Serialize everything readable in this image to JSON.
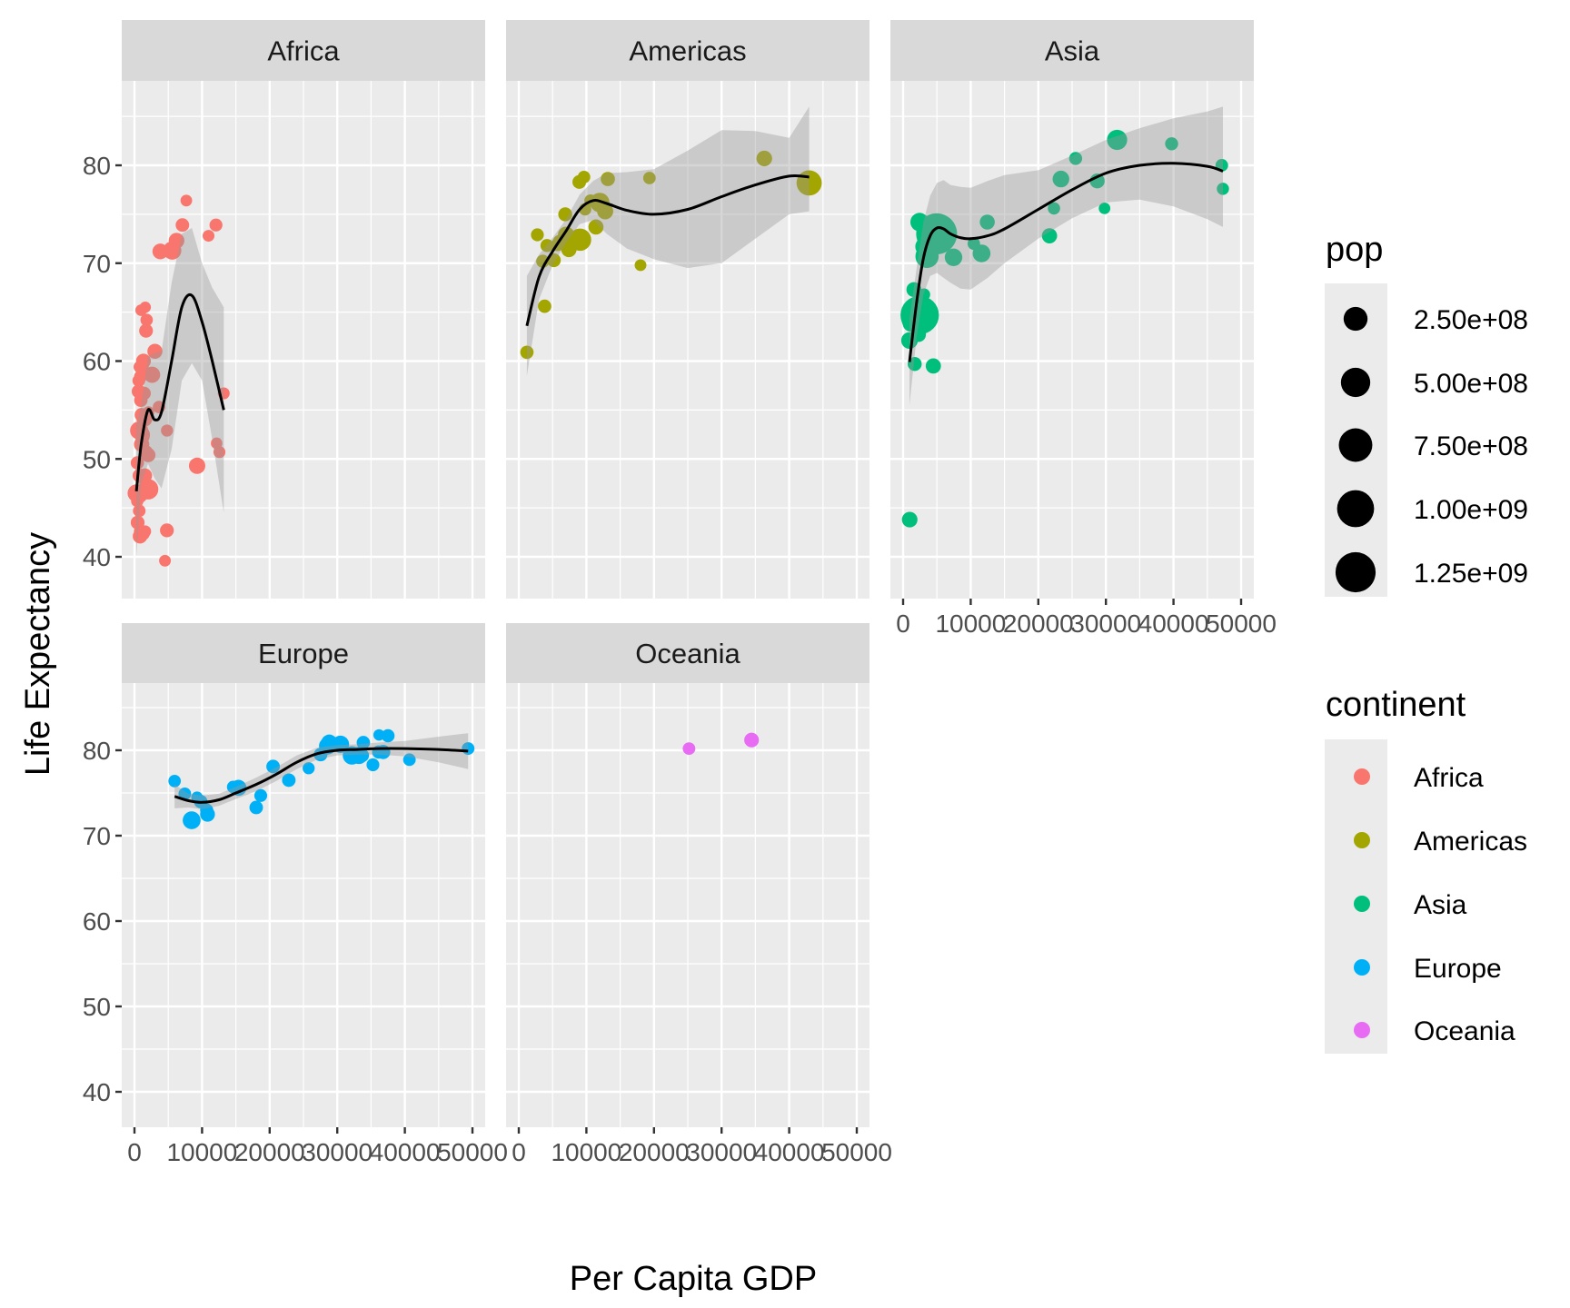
{
  "chart_data": {
    "type": "scatter",
    "subtype": "faceted scatter with loess smoothing and confidence band",
    "title": "",
    "xlabel": "Per Capita GDP",
    "ylabel": "Life Expectancy",
    "xlim": [
      0,
      50000
    ],
    "ylim": [
      40,
      80
    ],
    "x_ticks": [
      0,
      10000,
      20000,
      30000,
      40000,
      50000
    ],
    "x_tick_labels": [
      "0",
      "10000",
      "20000",
      "30000",
      "40000",
      "50000"
    ],
    "y_ticks": [
      40,
      50,
      60,
      70,
      80
    ],
    "y_tick_labels": [
      "40",
      "50",
      "60",
      "70",
      "80"
    ],
    "grid": true,
    "facet_by": "continent",
    "facets": [
      "Africa",
      "Americas",
      "Asia",
      "Europe",
      "Oceania"
    ],
    "colors": {
      "Africa": "#F8766D",
      "Americas": "#A3A500",
      "Asia": "#00BF7D",
      "Europe": "#00B0F6",
      "Oceania": "#E76BF3"
    },
    "size_legend": {
      "title": "pop",
      "labels": [
        "2.50e+08",
        "5.00e+08",
        "7.50e+08",
        "1.00e+09",
        "1.25e+09"
      ],
      "values": [
        250000000,
        500000000,
        750000000,
        1000000000,
        1250000000
      ]
    },
    "color_legend": {
      "title": "continent",
      "labels": [
        "Africa",
        "Americas",
        "Asia",
        "Europe",
        "Oceania"
      ]
    },
    "legend_placement": "right",
    "series": [
      {
        "name": "Africa",
        "points": [
          [
            6223,
            72.3,
            33333216
          ],
          [
            4797,
            42.7,
            12420476
          ],
          [
            1441,
            56.7,
            8078314
          ],
          [
            12570,
            50.7,
            1639131
          ],
          [
            1217,
            52.3,
            14326203
          ],
          [
            430,
            49.6,
            8390505
          ],
          [
            2042,
            50.4,
            17696293
          ],
          [
            706,
            44.7,
            4369038
          ],
          [
            1704,
            50.7,
            10238807
          ],
          [
            986,
            65.2,
            710960
          ],
          [
            278,
            46.5,
            64606759
          ],
          [
            3633,
            55.3,
            3800610
          ],
          [
            1545,
            48.3,
            18013409
          ],
          [
            2082,
            54.8,
            496374
          ],
          [
            5581,
            71.3,
            80264543
          ],
          [
            12154,
            51.6,
            551201
          ],
          [
            641,
            58.0,
            4906585
          ],
          [
            691,
            52.9,
            76511887
          ],
          [
            13206,
            56.7,
            1454867
          ],
          [
            753,
            59.4,
            1688359
          ],
          [
            1328,
            60.0,
            22873338
          ],
          [
            943,
            56.0,
            9947814
          ],
          [
            580,
            46.4,
            1472041
          ],
          [
            1463,
            54.1,
            35610177
          ],
          [
            1569,
            42.6,
            2012649
          ],
          [
            415,
            45.7,
            3193942
          ],
          [
            12057,
            73.9,
            6036914
          ],
          [
            1045,
            59.4,
            19167654
          ],
          [
            759,
            48.3,
            13327079
          ],
          [
            1042,
            54.5,
            12031795
          ],
          [
            1803,
            64.2,
            3270065
          ],
          [
            10957,
            72.8,
            1250882
          ],
          [
            3820,
            71.2,
            33757175
          ],
          [
            824,
            42.1,
            19951656
          ],
          [
            4811,
            52.9,
            2055080
          ],
          [
            620,
            56.9,
            12894865
          ],
          [
            2014,
            46.9,
            135031164
          ],
          [
            7670,
            76.4,
            798094
          ],
          [
            863,
            46.2,
            8860588
          ],
          [
            1598,
            65.5,
            199579
          ],
          [
            1712,
            63.1,
            12267493
          ],
          [
            862,
            42.6,
            6144562
          ],
          [
            926,
            48.2,
            9118773
          ],
          [
            9270,
            49.3,
            43997828
          ],
          [
            2602,
            58.6,
            42292929
          ],
          [
            4513,
            39.6,
            1133066
          ],
          [
            1107,
            52.5,
            38139640
          ],
          [
            883,
            58.4,
            5701579
          ],
          [
            7093,
            73.9,
            10276158
          ],
          [
            1056,
            51.5,
            29170398
          ],
          [
            1271,
            42.4,
            11746035
          ],
          [
            470,
            43.5,
            12311143
          ],
          [
            3025,
            61.0,
            25000000
          ],
          [
            1800,
            47.0,
            8500000
          ]
        ],
        "smooth": {
          "x": [
            278,
            1000,
            2000,
            3000,
            4000,
            5500,
            7000,
            8500,
            10000,
            11500,
            13206
          ],
          "y": [
            46.7,
            51.5,
            55.0,
            54.0,
            54.8,
            60.0,
            65.5,
            66.7,
            64.0,
            60.0,
            55.0
          ],
          "lower": [
            40.0,
            47.5,
            49.5,
            48.0,
            47.0,
            51.0,
            58.0,
            59.8,
            58.0,
            52.0,
            44.5
          ],
          "upper": [
            53.4,
            55.5,
            60.5,
            60.8,
            61.0,
            68.0,
            73.0,
            73.6,
            70.0,
            67.5,
            65.5
          ]
        }
      },
      {
        "name": "Americas",
        "points": [
          [
            12779,
            75.3,
            40301927
          ],
          [
            3822,
            65.6,
            9119152
          ],
          [
            9066,
            72.4,
            190010647
          ],
          [
            36319,
            80.7,
            33390141
          ],
          [
            13172,
            78.6,
            16284741
          ],
          [
            7007,
            72.9,
            44227550
          ],
          [
            9645,
            78.8,
            4133884
          ],
          [
            8948,
            78.3,
            11416987
          ],
          [
            6025,
            72.2,
            9319622
          ],
          [
            6873,
            74.99,
            13755680
          ],
          [
            5728,
            71.9,
            6939688
          ],
          [
            5186,
            70.3,
            12572928
          ],
          [
            1202,
            60.9,
            8502814
          ],
          [
            3548,
            70.2,
            7483763
          ],
          [
            7321,
            72.6,
            3600000
          ],
          [
            11978,
            76.2,
            108700891
          ],
          [
            2749,
            72.9,
            5675356
          ],
          [
            9809,
            75.5,
            3242173
          ],
          [
            4173,
            71.8,
            6667147
          ],
          [
            7409,
            71.4,
            28674757
          ],
          [
            19329,
            78.7,
            3942491
          ],
          [
            18009,
            69.8,
            1056608
          ],
          [
            10611,
            76.4,
            3447496
          ],
          [
            42952,
            78.2,
            301139947
          ],
          [
            11416,
            73.7,
            26084662
          ]
        ],
        "smooth": {
          "x": [
            1202,
            3000,
            5000,
            7000,
            9000,
            11000,
            13000,
            16000,
            20000,
            25000,
            30000,
            35000,
            40000,
            42952
          ],
          "y": [
            63.6,
            68.6,
            71.2,
            73.3,
            75.5,
            76.4,
            76.1,
            75.4,
            75.0,
            75.5,
            76.8,
            78.0,
            78.9,
            78.8
          ],
          "lower": [
            58.5,
            66.3,
            69.8,
            72.1,
            74.0,
            74.4,
            73.0,
            71.5,
            70.4,
            69.5,
            70.0,
            72.5,
            75.0,
            75.3
          ],
          "upper": [
            68.7,
            70.9,
            72.6,
            74.5,
            77.0,
            78.4,
            79.2,
            79.3,
            79.6,
            81.5,
            83.6,
            83.5,
            82.8,
            86.0
          ]
        }
      },
      {
        "name": "Asia",
        "points": [
          [
            975,
            43.8,
            31889923
          ],
          [
            29796,
            75.6,
            708573
          ],
          [
            1391,
            64.1,
            150448339
          ],
          [
            1714,
            59.7,
            14131858
          ],
          [
            4959,
            73.0,
            1318683096
          ],
          [
            39725,
            82.2,
            6980412
          ],
          [
            2452,
            64.7,
            1110396331
          ],
          [
            3541,
            70.7,
            223547000
          ],
          [
            11606,
            71.0,
            69453570
          ],
          [
            4471,
            59.5,
            27499638
          ],
          [
            25523,
            80.7,
            6426679
          ],
          [
            31656,
            82.6,
            127467972
          ],
          [
            4519,
            72.5,
            6053193
          ],
          [
            1593,
            67.3,
            23301725
          ],
          [
            23348,
            78.6,
            49044790
          ],
          [
            47307,
            77.6,
            2505559
          ],
          [
            10461,
            72.0,
            3921278
          ],
          [
            12452,
            74.2,
            24821286
          ],
          [
            3096,
            66.8,
            2874127
          ],
          [
            944,
            62.1,
            47761980
          ],
          [
            1091,
            63.8,
            28901790
          ],
          [
            22316,
            75.6,
            3204897
          ],
          [
            2606,
            65.5,
            169270617
          ],
          [
            3190,
            71.7,
            91077287
          ],
          [
            21655,
            72.8,
            27601038
          ],
          [
            47143,
            80.0,
            4553009
          ],
          [
            3970,
            72.4,
            20378239
          ],
          [
            4185,
            74.1,
            19314747
          ],
          [
            28718,
            78.4,
            23174294
          ],
          [
            7458,
            70.6,
            65068149
          ],
          [
            2442,
            74.2,
            85262356
          ],
          [
            3025,
            73.4,
            4018332
          ],
          [
            2281,
            62.7,
            22211743
          ]
        ],
        "smooth": {
          "x": [
            944,
            2000,
            3000,
            4000,
            5000,
            6000,
            7000,
            8500,
            10000,
            12500,
            15000,
            20000,
            25000,
            30000,
            35000,
            40000,
            45000,
            47307
          ],
          "y": [
            59.9,
            66.0,
            70.5,
            72.8,
            73.6,
            73.5,
            73.0,
            72.6,
            72.5,
            72.8,
            73.5,
            75.5,
            77.5,
            79.2,
            80.0,
            80.2,
            79.9,
            79.4
          ],
          "lower": [
            55.5,
            62.5,
            66.8,
            68.7,
            69.0,
            68.5,
            68.0,
            67.4,
            67.3,
            68.5,
            70.0,
            72.5,
            74.6,
            76.2,
            76.5,
            75.8,
            74.5,
            73.7
          ],
          "upper": [
            64.3,
            69.5,
            74.2,
            76.9,
            78.2,
            78.5,
            78.0,
            77.8,
            77.7,
            78.4,
            79.0,
            79.5,
            81.0,
            82.6,
            83.8,
            84.8,
            85.5,
            86.0
          ]
        }
      },
      {
        "name": "Europe",
        "points": [
          [
            5937,
            76.4,
            3600523
          ],
          [
            36126,
            79.8,
            8199783
          ],
          [
            33693,
            79.4,
            10392226
          ],
          [
            7446,
            74.9,
            4552198
          ],
          [
            10681,
            73.0,
            7322858
          ],
          [
            14619,
            75.7,
            4493312
          ],
          [
            22833,
            76.5,
            10228744
          ],
          [
            35278,
            78.3,
            5468120
          ],
          [
            33207,
            79.3,
            5238460
          ],
          [
            30470,
            80.7,
            61083916
          ],
          [
            32170,
            79.4,
            82400996
          ],
          [
            27538,
            79.5,
            10706290
          ],
          [
            18009,
            73.3,
            9956108
          ],
          [
            36181,
            81.8,
            301931
          ],
          [
            40676,
            78.9,
            4109086
          ],
          [
            28570,
            80.5,
            58147733
          ],
          [
            9254,
            74.5,
            684736
          ],
          [
            36798,
            79.8,
            16570613
          ],
          [
            49357,
            80.2,
            4627926
          ],
          [
            15390,
            75.6,
            38518241
          ],
          [
            20510,
            78.1,
            10642836
          ],
          [
            10808,
            72.5,
            22276056
          ],
          [
            9787,
            74.0,
            10150265
          ],
          [
            18678,
            74.7,
            5447502
          ],
          [
            25768,
            77.9,
            2009245
          ],
          [
            28821,
            80.9,
            40448191
          ],
          [
            33860,
            80.9,
            9031088
          ],
          [
            37506,
            81.7,
            7554661
          ],
          [
            8458,
            71.8,
            71158647
          ],
          [
            33203,
            79.4,
            60776238
          ]
        ],
        "smooth": {
          "x": [
            5937,
            8000,
            10000,
            12500,
            15000,
            18000,
            21000,
            24000,
            27000,
            30000,
            33000,
            36000,
            40000,
            45000,
            49357
          ],
          "y": [
            74.6,
            74.1,
            73.9,
            74.2,
            75.0,
            76.0,
            77.2,
            78.6,
            79.6,
            80.0,
            80.1,
            80.2,
            80.2,
            80.1,
            79.9
          ],
          "lower": [
            73.2,
            73.3,
            73.1,
            73.5,
            74.3,
            75.2,
            76.4,
            77.8,
            78.9,
            79.4,
            79.5,
            79.5,
            79.3,
            78.6,
            77.8
          ],
          "upper": [
            76.0,
            74.9,
            74.7,
            74.9,
            75.7,
            76.8,
            78.0,
            79.4,
            80.3,
            80.6,
            80.7,
            80.9,
            81.1,
            81.6,
            82.0
          ]
        }
      },
      {
        "name": "Oceania",
        "points": [
          [
            34435,
            81.2,
            20434176
          ],
          [
            25185,
            80.2,
            4115771
          ]
        ],
        "smooth": null
      }
    ]
  }
}
